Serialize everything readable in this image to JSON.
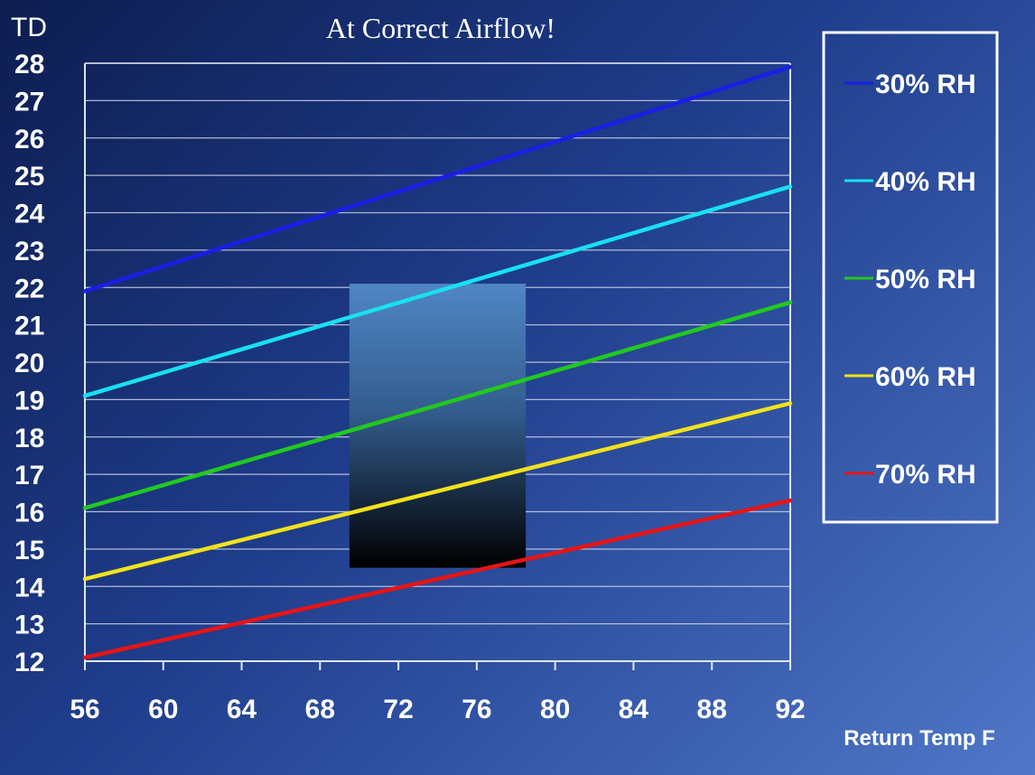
{
  "chart_data": {
    "type": "line",
    "title": "At Correct Airflow!",
    "ylabel": "TD",
    "xlabel": "Return Temp F",
    "x": [
      56,
      92
    ],
    "xticks": [
      56,
      60,
      64,
      68,
      72,
      76,
      80,
      84,
      88,
      92
    ],
    "yticks": [
      12,
      13,
      14,
      15,
      16,
      17,
      18,
      19,
      20,
      21,
      22,
      23,
      24,
      25,
      26,
      27,
      28
    ],
    "xlim": [
      56,
      92
    ],
    "ylim": [
      12,
      28
    ],
    "grid": true,
    "legend_position": "right",
    "series": [
      {
        "name": "30% RH",
        "values": [
          21.9,
          27.9
        ],
        "color": "#1a1ee6"
      },
      {
        "name": "40% RH",
        "values": [
          19.1,
          24.7
        ],
        "color": "#19e0f2"
      },
      {
        "name": "50% RH",
        "values": [
          16.1,
          21.6
        ],
        "color": "#22c91f"
      },
      {
        "name": "60% RH",
        "values": [
          14.2,
          18.9
        ],
        "color": "#f2e21a"
      },
      {
        "name": "70% RH",
        "values": [
          12.1,
          16.3
        ],
        "color": "#e81414"
      }
    ],
    "highlight_region": {
      "x": [
        69.5,
        78.5
      ],
      "y": [
        14.5,
        22.1
      ]
    }
  }
}
